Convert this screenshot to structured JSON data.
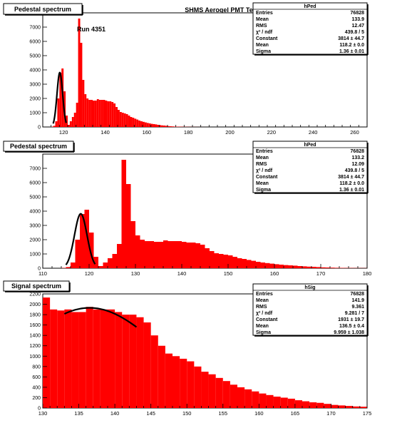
{
  "title": "SHMS Aerogel PMT Test",
  "annotation": "Run  4351",
  "colors": {
    "bar": "#ff0000",
    "fit": "#000000",
    "frame": "#000000",
    "box_bg": "#ffffff"
  },
  "chart_data": [
    {
      "type": "bar",
      "pad_title": "Pedestal spectrum",
      "xlim": [
        110,
        266
      ],
      "ylim": [
        0,
        8000
      ],
      "xticks": [
        "120",
        "140",
        "160",
        "180",
        "200",
        "220",
        "240",
        "260"
      ],
      "yticks": [
        "0",
        "1000",
        "2000",
        "3000",
        "4000",
        "5000",
        "6000",
        "7000"
      ],
      "bin_width": 1,
      "bins": {
        "x": [
          114,
          115,
          116,
          117,
          118,
          119,
          120,
          121,
          122,
          123,
          124,
          125,
          126,
          127,
          128,
          129,
          130,
          131,
          132,
          133,
          134,
          135,
          136,
          137,
          138,
          139,
          140,
          141,
          142,
          143,
          144,
          145,
          146,
          147,
          148,
          149,
          150,
          151,
          152,
          153,
          154,
          155,
          156,
          157,
          158,
          159,
          160,
          161,
          162,
          163,
          164,
          165,
          166,
          167,
          168,
          169,
          170,
          171,
          172,
          173,
          174,
          175,
          176,
          177,
          178,
          179,
          180,
          181,
          182,
          183,
          184,
          185,
          186,
          187,
          188,
          189,
          190
        ],
        "y": [
          20,
          80,
          400,
          2000,
          3800,
          4100,
          2500,
          800,
          150,
          400,
          700,
          1000,
          1700,
          7600,
          5900,
          3300,
          2300,
          2000,
          1900,
          1900,
          1850,
          1850,
          1950,
          1900,
          1900,
          1900,
          1850,
          1800,
          1800,
          1750,
          1650,
          1400,
          1200,
          1050,
          1000,
          950,
          900,
          800,
          700,
          650,
          580,
          520,
          450,
          400,
          360,
          320,
          280,
          250,
          220,
          200,
          180,
          150,
          130,
          110,
          100,
          80,
          60,
          50,
          40,
          30,
          25,
          20,
          18,
          15,
          12,
          10,
          8,
          6,
          5,
          4,
          3,
          2,
          2,
          1,
          1,
          1,
          0
        ]
      },
      "fit": {
        "type": "gaus",
        "constant": 3814,
        "mean": 118.2,
        "sigma": 1.36,
        "range": [
          115,
          121.3
        ]
      },
      "stats_box": {
        "name": "hPed",
        "rows": [
          {
            "label": "Entries",
            "value": "76828"
          },
          {
            "label": "Mean",
            "value": "133.9"
          },
          {
            "label": "RMS",
            "value": "12.47"
          },
          {
            "label": "χ² / ndf",
            "value": "439.8 / 5"
          },
          {
            "label": "Constant",
            "value": "3814 ± 44.7"
          },
          {
            "label": "Mean",
            "value": "118.2 ± 0.0"
          },
          {
            "label": "Sigma",
            "value": "1.36 ± 0.01"
          }
        ]
      }
    },
    {
      "type": "bar",
      "pad_title": "Pedestal spectrum",
      "xlim": [
        110,
        180
      ],
      "ylim": [
        0,
        8000
      ],
      "xticks": [
        "110",
        "120",
        "130",
        "140",
        "150",
        "160",
        "170",
        "180"
      ],
      "yticks": [
        "0",
        "1000",
        "2000",
        "3000",
        "4000",
        "5000",
        "6000",
        "7000"
      ],
      "bin_width": 1,
      "bins": {
        "x": [
          114,
          115,
          116,
          117,
          118,
          119,
          120,
          121,
          122,
          123,
          124,
          125,
          126,
          127,
          128,
          129,
          130,
          131,
          132,
          133,
          134,
          135,
          136,
          137,
          138,
          139,
          140,
          141,
          142,
          143,
          144,
          145,
          146,
          147,
          148,
          149,
          150,
          151,
          152,
          153,
          154,
          155,
          156,
          157,
          158,
          159,
          160,
          161,
          162,
          163,
          164,
          165,
          166,
          167,
          168,
          169,
          170,
          171,
          172,
          173,
          174,
          175,
          176,
          177,
          178,
          179
        ],
        "y": [
          20,
          80,
          400,
          2000,
          3800,
          4100,
          2500,
          800,
          150,
          400,
          700,
          1000,
          1700,
          7600,
          5900,
          3300,
          2300,
          2000,
          1900,
          1900,
          1850,
          1850,
          1950,
          1900,
          1900,
          1900,
          1850,
          1800,
          1800,
          1750,
          1650,
          1400,
          1200,
          1050,
          1000,
          950,
          900,
          800,
          700,
          650,
          580,
          520,
          450,
          400,
          360,
          320,
          280,
          250,
          220,
          200,
          180,
          150,
          130,
          110,
          100,
          80,
          60,
          50,
          40,
          30,
          25,
          20,
          18,
          15,
          12,
          10
        ]
      },
      "fit": {
        "type": "gaus",
        "constant": 3814,
        "mean": 118.2,
        "sigma": 1.36,
        "range": [
          115,
          121.3
        ]
      },
      "stats_box": {
        "name": "hPed",
        "rows": [
          {
            "label": "Entries",
            "value": "76828"
          },
          {
            "label": "Mean",
            "value": "133.2"
          },
          {
            "label": "RMS",
            "value": "12.09"
          },
          {
            "label": "χ² / ndf",
            "value": "439.8 / 5"
          },
          {
            "label": "Constant",
            "value": "3814 ± 44.7"
          },
          {
            "label": "Mean",
            "value": "118.2 ± 0.0"
          },
          {
            "label": "Sigma",
            "value": "1.36 ± 0.01"
          }
        ]
      }
    },
    {
      "type": "bar",
      "pad_title": "Signal spectrum",
      "xlim": [
        130,
        175
      ],
      "ylim": [
        0,
        2200
      ],
      "xticks": [
        "130",
        "135",
        "140",
        "145",
        "150",
        "155",
        "160",
        "165",
        "170",
        "175"
      ],
      "yticks": [
        "0",
        "200",
        "400",
        "600",
        "800",
        "1000",
        "1200",
        "1400",
        "1600",
        "1800",
        "2000",
        "2200"
      ],
      "bin_width": 1,
      "bins": {
        "x": [
          130,
          131,
          132,
          133,
          134,
          135,
          136,
          137,
          138,
          139,
          140,
          141,
          142,
          143,
          144,
          145,
          146,
          147,
          148,
          149,
          150,
          151,
          152,
          153,
          154,
          155,
          156,
          157,
          158,
          159,
          160,
          161,
          162,
          163,
          164,
          165,
          166,
          167,
          168,
          169,
          170,
          171,
          172,
          173,
          174
        ],
        "y": [
          2130,
          1900,
          1880,
          1900,
          1850,
          1850,
          1950,
          1900,
          1900,
          1900,
          1850,
          1800,
          1800,
          1750,
          1650,
          1400,
          1200,
          1050,
          1000,
          950,
          900,
          800,
          700,
          650,
          580,
          520,
          450,
          400,
          360,
          320,
          280,
          250,
          220,
          200,
          180,
          150,
          130,
          110,
          100,
          80,
          60,
          50,
          40,
          30,
          25
        ]
      },
      "fit": {
        "type": "gaus",
        "constant": 1931,
        "mean": 136.5,
        "sigma": 9.959,
        "range": [
          133,
          143
        ]
      },
      "stats_box": {
        "name": "hSig",
        "rows": [
          {
            "label": "Entries",
            "value": "76828"
          },
          {
            "label": "Mean",
            "value": "141.9"
          },
          {
            "label": "RMS",
            "value": "9.361"
          },
          {
            "label": "χ² / ndf",
            "value": "9.281 / 7"
          },
          {
            "label": "Constant",
            "value": "1931 ± 19.7"
          },
          {
            "label": "Mean",
            "value": "136.5 ± 0.4"
          },
          {
            "label": "Sigma",
            "value": "9.959 ± 1.038"
          }
        ]
      }
    }
  ]
}
